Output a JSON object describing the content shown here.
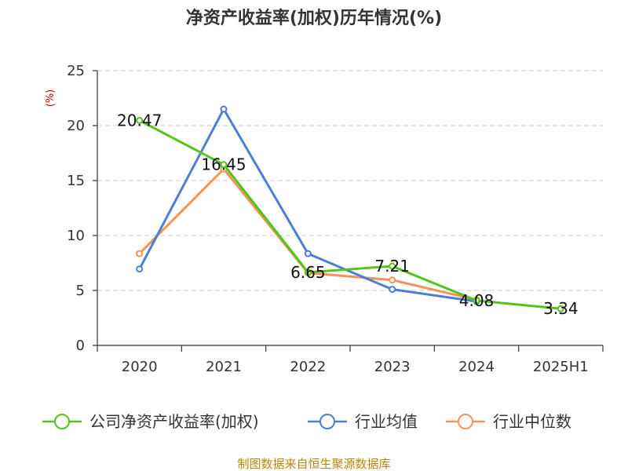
{
  "chart_data": {
    "type": "line",
    "title": "净资产收益率(加权)历年情况(%)",
    "ylabel": "(%)",
    "xlabel": "",
    "categories": [
      "2020",
      "2021",
      "2022",
      "2023",
      "2024",
      "2025H1"
    ],
    "ylim": [
      0,
      25
    ],
    "yticks": [
      0,
      5,
      10,
      15,
      20,
      25
    ],
    "grid": true,
    "legend_position": "bottom",
    "series": [
      {
        "name": "公司净资产收益率(加权)",
        "color": "#52c41a",
        "values": [
          20.47,
          16.45,
          6.65,
          7.21,
          4.08,
          3.34
        ],
        "data_labels": [
          "20.47",
          "16.45",
          "6.65",
          "7.21",
          "4.08",
          "3.34"
        ]
      },
      {
        "name": "行业均值",
        "color": "#4a7fd6",
        "values": [
          6.95,
          21.5,
          8.35,
          5.1,
          4.0,
          null
        ]
      },
      {
        "name": "行业中位数",
        "color": "#f5925a",
        "values": [
          8.35,
          16.05,
          6.6,
          5.95,
          4.15,
          null
        ]
      }
    ],
    "source": "制图数据来自恒生聚源数据库"
  }
}
